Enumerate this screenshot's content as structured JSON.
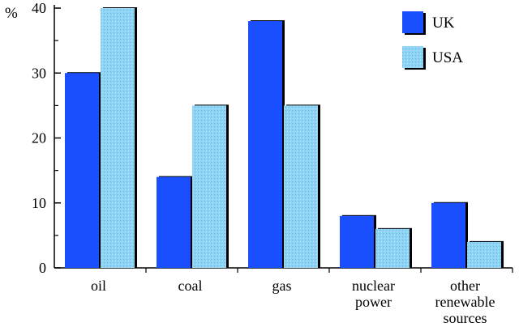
{
  "chart_data": {
    "type": "bar",
    "title": "",
    "xlabel": "",
    "ylabel": "%",
    "ylim": [
      0,
      40
    ],
    "yticks": [
      "0",
      "10",
      "20",
      "30",
      "40"
    ],
    "categories": [
      [
        "oil"
      ],
      [
        "coal"
      ],
      [
        "gas"
      ],
      [
        "nuclear",
        "power"
      ],
      [
        "other",
        "renewable",
        "sources"
      ]
    ],
    "series": [
      {
        "name": "UK",
        "color": "#1a4fff",
        "values": [
          30,
          14,
          38,
          8,
          10
        ]
      },
      {
        "name": "USA",
        "color": "#8fd3f5",
        "values": [
          40,
          25,
          25,
          6,
          4
        ]
      }
    ],
    "legend": "top-right",
    "grid": false
  }
}
